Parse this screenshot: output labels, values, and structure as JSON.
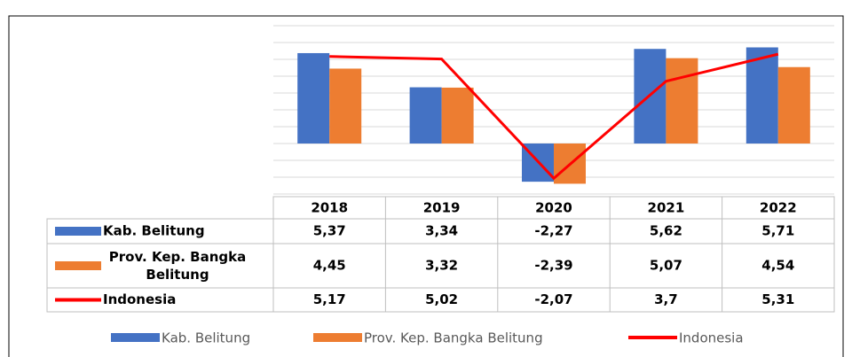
{
  "chart_data": {
    "type": "bar",
    "categories": [
      "2018",
      "2019",
      "2020",
      "2021",
      "2022"
    ],
    "series": [
      {
        "name": "Kab. Belitung",
        "color": "#4472c4",
        "type": "bar",
        "values": [
          5.37,
          3.34,
          -2.27,
          5.62,
          5.71
        ],
        "value_labels": [
          "5,37",
          "3,34",
          "-2,27",
          "5,62",
          "5,71"
        ]
      },
      {
        "name": "Prov. Kep. Bangka Belitung",
        "color": "#ed7d31",
        "type": "bar",
        "values": [
          4.45,
          3.32,
          -2.39,
          5.07,
          4.54
        ],
        "value_labels": [
          "4,45",
          "3,32",
          "-2,39",
          "5,07",
          "4,54"
        ]
      },
      {
        "name": "Indonesia",
        "color": "#ff0000",
        "type": "line",
        "values": [
          5.17,
          5.02,
          -2.07,
          3.7,
          5.31
        ],
        "value_labels": [
          "5,17",
          "5,02",
          "-2,07",
          "3,7",
          "5,31"
        ]
      }
    ],
    "ylim": [
      -3,
      7
    ],
    "yticks": [
      -3,
      -2,
      -1,
      0,
      1,
      2,
      3,
      4,
      5,
      6,
      7
    ],
    "grid": true,
    "legend": "bottom"
  }
}
